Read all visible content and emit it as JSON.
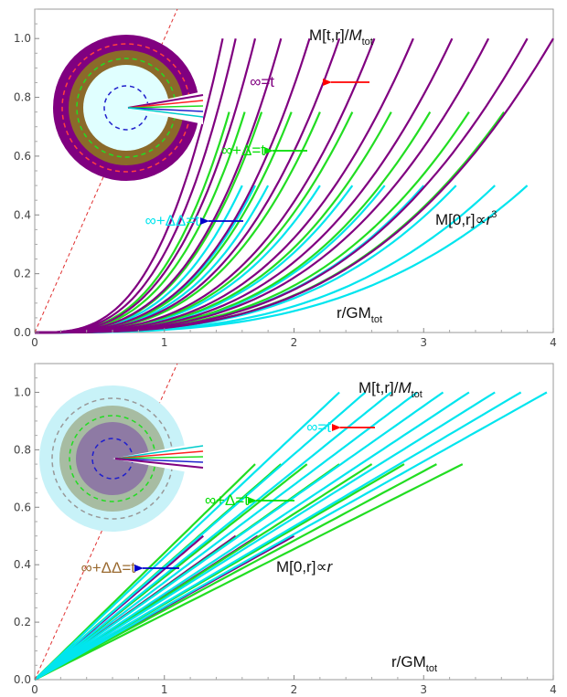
{
  "chart_data": [
    {
      "type": "line",
      "title": "",
      "xlabel": "r/GM_tot",
      "ylabel": "M[t,r]/M_tot",
      "xlim": [
        0,
        4
      ],
      "ylim": [
        0,
        1.1
      ],
      "xticks": [
        0,
        1,
        2,
        3,
        4
      ],
      "yticks": [
        "0.0",
        "0.2",
        "0.4",
        "0.6",
        "0.8",
        "1.0"
      ],
      "grid": false,
      "reference_line": {
        "style": "dashed",
        "color": "#e03030",
        "slope": 1
      },
      "ylabel_parts": {
        "main": "M[t,r]/",
        "italic": "M",
        "sub": "tot"
      },
      "xlabel_parts": {
        "main": "r/GM",
        "sub": "tot"
      },
      "model_label": {
        "main": "M[0,r]∝",
        "italic": "r",
        "sup": "3"
      },
      "annotations": [
        {
          "text": "∞=t",
          "color": "#800080",
          "arrow_color": "#ff0000",
          "y": 0.89
        },
        {
          "text": "∞+Δ=t",
          "color": "#00dd00",
          "arrow_color": "#00dd00",
          "y": 0.66
        },
        {
          "text": "∞+ΔΔ=t",
          "color": "#00e5ee",
          "arrow_color": "#0000cc",
          "y": 0.41
        }
      ],
      "series": [
        {
          "color": "#00e5ee",
          "power": 3,
          "x_at_end": [
            1.6,
            1.7,
            1.8,
            2.2,
            2.45,
            2.7,
            3.0,
            3.25,
            3.55,
            3.8
          ],
          "y_end": 0.5
        },
        {
          "color": "#22dd22",
          "power": 3,
          "x_at_end": [
            1.5,
            1.62,
            1.75,
            1.98,
            2.2,
            2.45,
            2.75,
            3.05,
            3.35,
            3.62
          ],
          "y_end": 0.75
        },
        {
          "color": "#800080",
          "power": 3,
          "x_at_end": [
            1.45,
            1.55,
            1.7,
            1.9,
            2.12,
            2.35,
            2.62,
            2.92,
            3.22,
            3.5,
            3.8,
            4.0
          ],
          "y_end": 1.0
        }
      ],
      "inset": {
        "type": "ring-diagram",
        "outer_color": "#800080",
        "middle_color": "#8b6a2a",
        "inner_color": "#e0ffff"
      }
    },
    {
      "type": "line",
      "title": "",
      "xlabel": "r/GM_tot",
      "ylabel": "M[t,r]/M_tot",
      "xlim": [
        0,
        4
      ],
      "ylim": [
        0,
        1.1
      ],
      "xticks": [
        0,
        1,
        2,
        3,
        4
      ],
      "yticks": [
        "0.0",
        "0.2",
        "0.4",
        "0.6",
        "0.8",
        "1.0"
      ],
      "grid": false,
      "reference_line": {
        "style": "dashed",
        "color": "#e03030",
        "slope": 1
      },
      "ylabel_parts": {
        "main": "M[t,r]/",
        "italic": "M",
        "sub": "tot"
      },
      "xlabel_parts": {
        "main": "r/GM",
        "sub": "tot"
      },
      "model_label": {
        "main": "M[0,r]∝",
        "italic": "r",
        "sup": ""
      },
      "annotations": [
        {
          "text": "∞=t",
          "color": "#00e5ee",
          "arrow_color": "#ff0000",
          "y": 0.89
        },
        {
          "text": "∞+Δ=t",
          "color": "#00dd00",
          "arrow_color": "#00dd00",
          "y": 0.64
        },
        {
          "text": "∞+ΔΔ=t",
          "color": "#9a6a30",
          "arrow_color": "#0000cc",
          "y": 0.43
        }
      ],
      "series": [
        {
          "color": "#800080",
          "power": 1,
          "x_at_end": [
            1.3,
            1.4,
            1.55,
            1.72,
            1.88,
            2.0
          ],
          "y_end": 0.5
        },
        {
          "color": "#22dd22",
          "power": 1,
          "x_at_end": [
            1.7,
            1.9,
            2.1,
            2.35,
            2.6,
            2.85,
            3.1,
            3.3
          ],
          "y_end": 0.75
        },
        {
          "color": "#00e5ee",
          "power": 1,
          "x_at_end": [
            2.35,
            2.55,
            2.75,
            2.95,
            3.15,
            3.35,
            3.55,
            3.75,
            3.95
          ],
          "y_end": 1.0
        }
      ],
      "inset": {
        "type": "ring-diagram",
        "outer_color": "#c8f2f8",
        "middle_color": "#a7bca2",
        "inner_color": "#8e7aa4"
      }
    }
  ]
}
